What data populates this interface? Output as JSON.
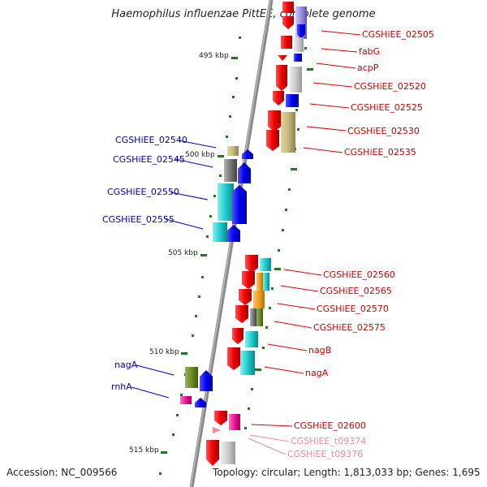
{
  "title": "Haemophilus influenzae PittEE, complete genome",
  "footer": {
    "accession": "Accession: NC_009566",
    "summary": "Topology: circular; Length: 1,813,033 bp; Genes: 1,695"
  },
  "scale_labels": [
    "495 kbp",
    "500 kbp",
    "505 kbp",
    "510 kbp",
    "515 kbp"
  ],
  "genes_right": [
    {
      "label": "CGSHiEE_02505",
      "color": "#cc0000"
    },
    {
      "label": "fabG",
      "color": "#cc0000"
    },
    {
      "label": "acpP",
      "color": "#cc0000"
    },
    {
      "label": "CGSHiEE_02520",
      "color": "#cc0000"
    },
    {
      "label": "CGSHiEE_02525",
      "color": "#cc0000"
    },
    {
      "label": "CGSHiEE_02530",
      "color": "#cc0000"
    },
    {
      "label": "CGSHiEE_02535",
      "color": "#cc0000"
    },
    {
      "label": "CGSHiEE_02560",
      "color": "#cc0000"
    },
    {
      "label": "CGSHiEE_02565",
      "color": "#cc0000"
    },
    {
      "label": "CGSHiEE_02570",
      "color": "#cc0000"
    },
    {
      "label": "CGSHiEE_02575",
      "color": "#cc0000"
    },
    {
      "label": "nagB",
      "color": "#cc0000"
    },
    {
      "label": "nagA",
      "color": "#cc0000"
    },
    {
      "label": "CGSHiEE_02600",
      "color": "#cc0000"
    },
    {
      "label": "CGSHiEE_t09374",
      "color": "#f08aa0"
    },
    {
      "label": "CGSHiEE_t09376",
      "color": "#f08aa0"
    }
  ],
  "genes_left": [
    {
      "label": "CGSHiEE_02540",
      "color": "#0000aa"
    },
    {
      "label": "CGSHiEE_02545",
      "color": "#0000aa"
    },
    {
      "label": "CGSHiEE_02550",
      "color": "#0000aa"
    },
    {
      "label": "CGSHiEE_02555",
      "color": "#0000aa"
    },
    {
      "label": "nagA",
      "color": "#0000aa"
    },
    {
      "label": "rnhA",
      "color": "#0000aa"
    }
  ],
  "colors": {
    "forward_gene": "#ee1111",
    "reverse_gene": "#1111ee",
    "backbone": "#888888",
    "tick": "#227722",
    "cyan_feature": "#22cccc",
    "olive_feature": "#6b8e23",
    "orange_feature": "#f0a020",
    "khaki_feature": "#c8b878",
    "gray_feature": "#777777",
    "magenta_feature": "#ee1199",
    "lavender_feature": "#9a8fe0"
  }
}
